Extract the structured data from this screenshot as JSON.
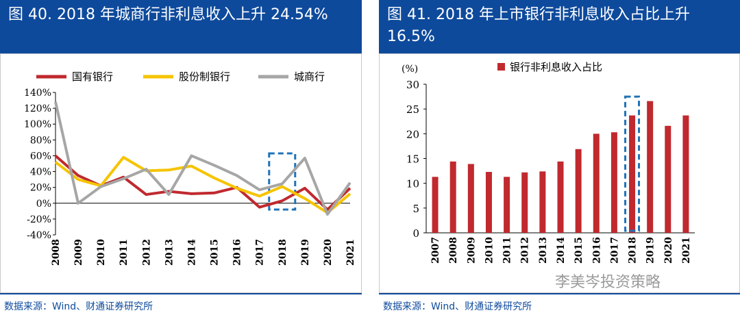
{
  "left_panel": {
    "title": "图 40. 2018 年城商行非利息收入上升 24.54%",
    "source": "数据来源：Wind、财通证券研究所"
  },
  "right_panel": {
    "title": "图 41. 2018 年上市银行非利息收入占比上升 16.5%",
    "source": "数据来源：Wind、财通证券研究所"
  },
  "watermark": "李美岑投资策略",
  "colors": {
    "header_bg": "#0e4a9c",
    "red": "#c0292e",
    "yellow": "#f5c400",
    "gray": "#a6a6a6",
    "highlight": "#1f73b7"
  },
  "chart_data": [
    {
      "type": "line",
      "categories": [
        "2008",
        "2009",
        "2010",
        "2011",
        "2012",
        "2013",
        "2014",
        "2015",
        "2016",
        "2017",
        "2018",
        "2019",
        "2020",
        "2021"
      ],
      "series": [
        {
          "name": "国有银行",
          "values": [
            60,
            35,
            22,
            33,
            11,
            15,
            12,
            13,
            20,
            -5,
            3,
            19,
            -8,
            19
          ]
        },
        {
          "name": "股份制银行",
          "values": [
            52,
            30,
            22,
            58,
            41,
            42,
            47,
            32,
            19,
            9,
            21,
            6,
            -12,
            12
          ]
        },
        {
          "name": "城商行",
          "values": [
            128,
            0,
            21,
            31,
            43,
            11,
            60,
            48,
            35,
            17,
            24.54,
            57,
            -14,
            26
          ]
        }
      ],
      "ylim": [
        -40,
        140
      ],
      "yticks": [
        "140%",
        "120%",
        "100%",
        "80%",
        "60%",
        "40%",
        "20%",
        "0%",
        "-20%",
        "-40%"
      ],
      "ytick_values": [
        140,
        120,
        100,
        80,
        60,
        40,
        20,
        0,
        -20,
        -40
      ],
      "highlight_category": "2018",
      "legend": "top"
    },
    {
      "type": "bar",
      "categories": [
        "2007",
        "2008",
        "2009",
        "2010",
        "2011",
        "2012",
        "2013",
        "2014",
        "2015",
        "2016",
        "2017",
        "2018",
        "2019",
        "2020",
        "2021"
      ],
      "series": [
        {
          "name": "银行非利息收入占比",
          "values": [
            11.3,
            14.4,
            13.9,
            12.3,
            11.3,
            12.2,
            12.4,
            14.4,
            16.9,
            20.0,
            20.3,
            23.7,
            26.6,
            21.6,
            23.7
          ]
        }
      ],
      "ylabel": "(%)",
      "ylim": [
        0,
        30
      ],
      "yticks": [
        "30",
        "25",
        "20",
        "15",
        "10",
        "5",
        "0"
      ],
      "ytick_values": [
        30,
        25,
        20,
        15,
        10,
        5,
        0
      ],
      "highlight_category": "2018",
      "legend": "top"
    }
  ]
}
